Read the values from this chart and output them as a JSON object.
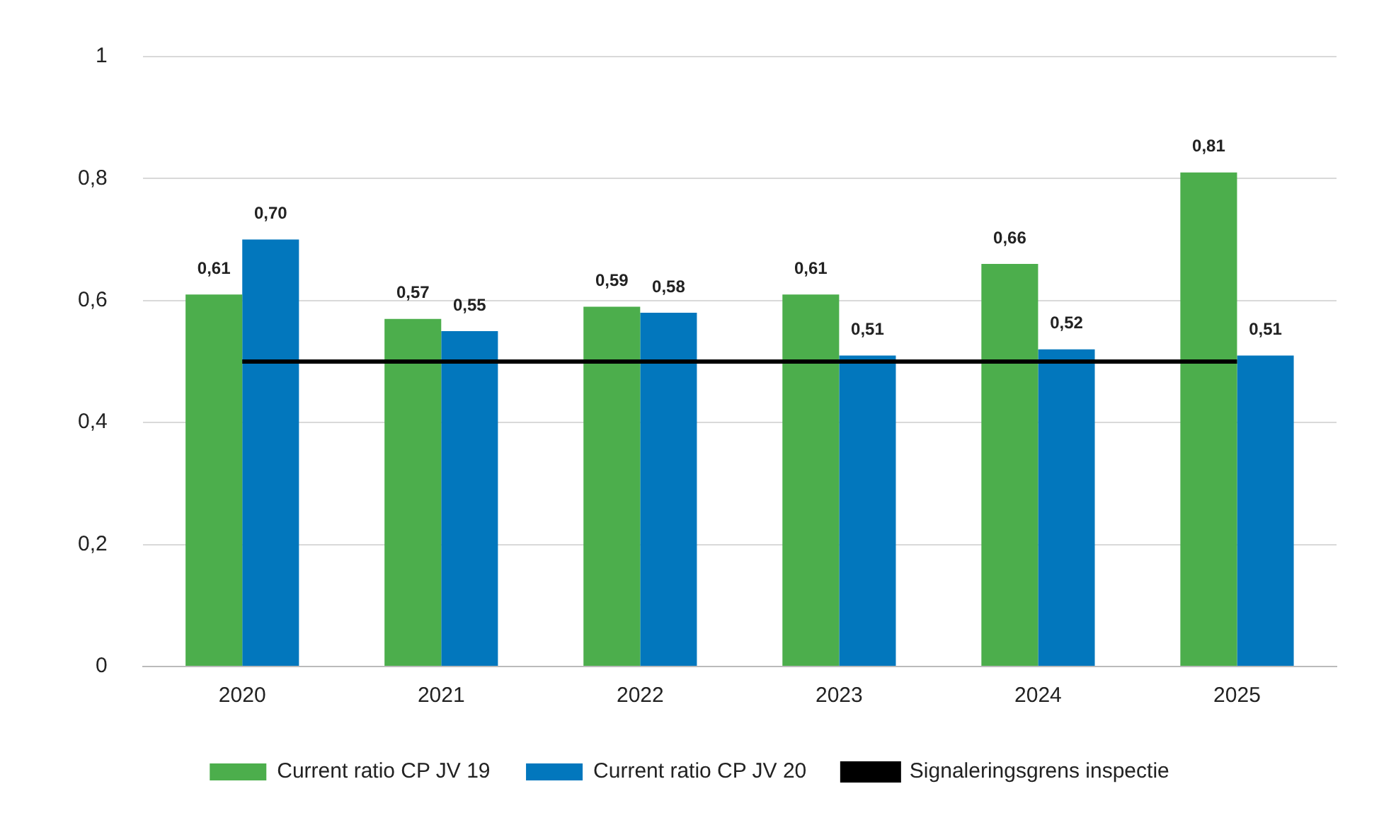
{
  "chart_data": {
    "type": "bar",
    "categories": [
      "2020",
      "2021",
      "2022",
      "2023",
      "2024",
      "2025"
    ],
    "series": [
      {
        "name": "Current ratio CP JV 19",
        "color": "#4cae4c",
        "values": [
          0.61,
          0.57,
          0.59,
          0.61,
          0.66,
          0.81
        ],
        "value_labels": [
          "0,61",
          "0,57",
          "0,59",
          "0,61",
          "0,66",
          "0,81"
        ]
      },
      {
        "name": "Current ratio CP JV 20",
        "color": "#0277bd",
        "values": [
          0.7,
          0.55,
          0.58,
          0.51,
          0.52,
          0.51
        ],
        "value_labels": [
          "0,70",
          "0,55",
          "0,58",
          "0,51",
          "0,52",
          "0,51"
        ]
      },
      {
        "name": "Signaleringsgrens inspectie",
        "type": "line",
        "color": "#000000",
        "values": [
          0.5,
          0.5,
          0.5,
          0.5,
          0.5,
          0.5
        ],
        "marker": "none"
      }
    ],
    "ylim": [
      0,
      1
    ],
    "yticks": [
      0,
      {
        "value": 0.2,
        "label": "0,2"
      },
      {
        "value": 0.4,
        "label": "0,4"
      },
      {
        "value": 0.6,
        "label": "0,6"
      },
      {
        "value": 0.8,
        "label": "0,8"
      },
      1
    ],
    "grid": "y",
    "legend": "bottom"
  }
}
